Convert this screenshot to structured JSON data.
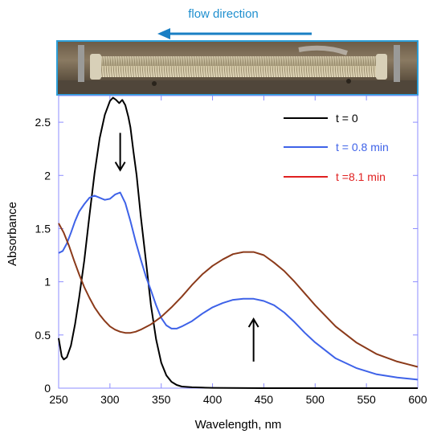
{
  "header": {
    "flow_label": "flow direction",
    "arrow_color": "#1a7fc4"
  },
  "photo": {
    "border_color": "#2d9fd9",
    "icon": "reactor-coil-photo"
  },
  "chart_data": {
    "type": "line",
    "xlabel": "Wavelength, nm",
    "ylabel": "Absorbance",
    "xlim": [
      250,
      600
    ],
    "ylim": [
      0,
      2.75
    ],
    "x_ticks": [
      250,
      300,
      350,
      400,
      450,
      500,
      550,
      600
    ],
    "y_ticks": [
      0,
      0.5,
      1,
      1.5,
      2,
      2.5
    ],
    "y_tick_labels": [
      "0",
      "0.5",
      "1",
      "1.5",
      "2",
      "2.5"
    ],
    "axis_color": "#8c8cff",
    "grid": false,
    "legend_position": "top-right",
    "series": [
      {
        "name": "t = 0",
        "color": "#000000",
        "x": [
          250,
          253,
          255,
          258,
          262,
          266,
          270,
          275,
          280,
          285,
          290,
          295,
          300,
          303,
          306,
          309,
          312,
          315,
          318,
          320,
          323,
          326,
          330,
          335,
          340,
          345,
          350,
          355,
          360,
          365,
          370,
          380,
          390,
          400,
          450,
          500,
          550,
          600
        ],
        "y": [
          0.47,
          0.3,
          0.27,
          0.29,
          0.4,
          0.6,
          0.85,
          1.2,
          1.62,
          2.02,
          2.35,
          2.57,
          2.7,
          2.73,
          2.71,
          2.68,
          2.71,
          2.66,
          2.55,
          2.45,
          2.22,
          2.0,
          1.62,
          1.2,
          0.78,
          0.46,
          0.24,
          0.12,
          0.06,
          0.03,
          0.015,
          0.008,
          0.005,
          0.003,
          0.0,
          0.0,
          0.0,
          0.0
        ]
      },
      {
        "name": "t = 0.8 min",
        "color": "#3e62e8",
        "x": [
          250,
          254,
          258,
          262,
          266,
          270,
          275,
          280,
          285,
          290,
          295,
          300,
          305,
          310,
          315,
          320,
          325,
          330,
          335,
          340,
          345,
          350,
          355,
          360,
          365,
          370,
          380,
          390,
          400,
          410,
          420,
          430,
          440,
          450,
          460,
          470,
          480,
          490,
          500,
          520,
          540,
          560,
          580,
          600
        ],
        "y": [
          1.27,
          1.29,
          1.36,
          1.46,
          1.57,
          1.66,
          1.73,
          1.79,
          1.81,
          1.79,
          1.77,
          1.78,
          1.82,
          1.84,
          1.74,
          1.57,
          1.38,
          1.21,
          1.05,
          0.92,
          0.78,
          0.66,
          0.59,
          0.56,
          0.56,
          0.58,
          0.63,
          0.7,
          0.76,
          0.8,
          0.83,
          0.84,
          0.84,
          0.82,
          0.78,
          0.71,
          0.62,
          0.52,
          0.43,
          0.28,
          0.19,
          0.13,
          0.1,
          0.08
        ]
      },
      {
        "name": "t =8.1 min",
        "color": "#8b3a1a",
        "legend_color": "#e02020",
        "x": [
          250,
          255,
          260,
          265,
          270,
          275,
          280,
          285,
          290,
          295,
          300,
          305,
          310,
          315,
          320,
          325,
          330,
          340,
          350,
          360,
          370,
          380,
          390,
          400,
          410,
          420,
          430,
          440,
          450,
          460,
          470,
          480,
          490,
          500,
          520,
          540,
          560,
          580,
          600
        ],
        "y": [
          1.55,
          1.46,
          1.34,
          1.2,
          1.07,
          0.95,
          0.85,
          0.76,
          0.69,
          0.63,
          0.58,
          0.55,
          0.53,
          0.52,
          0.52,
          0.53,
          0.55,
          0.6,
          0.67,
          0.76,
          0.86,
          0.97,
          1.07,
          1.15,
          1.21,
          1.26,
          1.28,
          1.28,
          1.25,
          1.18,
          1.1,
          1.0,
          0.89,
          0.78,
          0.58,
          0.43,
          0.32,
          0.25,
          0.2
        ]
      }
    ],
    "annotations": [
      {
        "type": "arrow",
        "direction": "down",
        "x": 310,
        "y_from": 2.4,
        "y_to": 2.05,
        "color": "#000000"
      },
      {
        "type": "arrow",
        "direction": "up",
        "x": 440,
        "y_from": 0.25,
        "y_to": 0.65,
        "color": "#000000"
      }
    ]
  }
}
